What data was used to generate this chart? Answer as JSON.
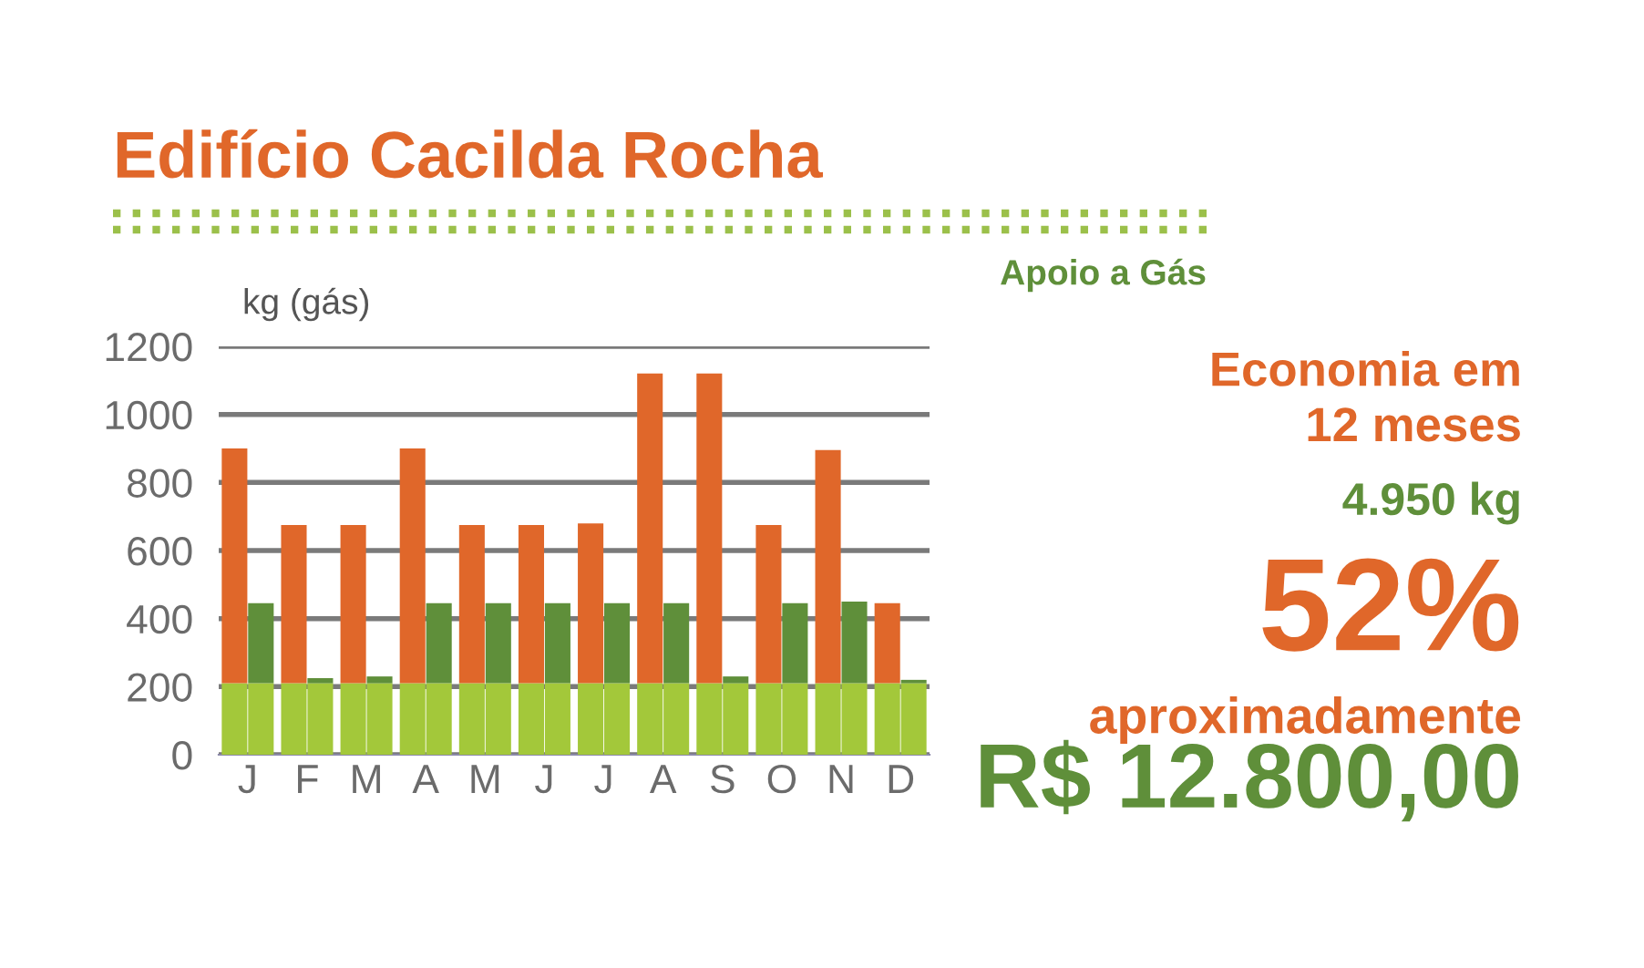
{
  "chart_data": {
    "type": "bar",
    "stacked": true,
    "title": "Edifício Cacilda Rocha",
    "ylabel": "kg (gás)",
    "categories": [
      "J",
      null,
      "F",
      null,
      "M",
      null,
      "A",
      null,
      "M",
      null,
      "J",
      null,
      "J",
      null,
      "A",
      null,
      "S",
      null,
      "O",
      null,
      "N",
      null,
      "D",
      null
    ],
    "series": [
      {
        "color": "#a3c83a",
        "values": [
          210,
          210,
          210,
          210,
          210,
          210,
          210,
          210,
          210,
          210,
          210,
          210,
          210,
          210,
          210,
          210,
          210,
          210,
          210,
          210,
          210,
          210,
          210,
          210
        ]
      },
      {
        "color": "#e0672a",
        "values": [
          690,
          null,
          465,
          null,
          465,
          null,
          690,
          null,
          465,
          null,
          465,
          null,
          470,
          null,
          910,
          null,
          910,
          null,
          465,
          null,
          685,
          null,
          235,
          null
        ]
      },
      {
        "color": "#5f8f3a",
        "values": [
          null,
          235,
          null,
          15,
          null,
          20,
          null,
          235,
          null,
          235,
          null,
          235,
          null,
          235,
          null,
          235,
          null,
          20,
          null,
          235,
          null,
          240,
          null,
          10
        ]
      }
    ],
    "ylim": [
      0,
      1200
    ],
    "yticks": [
      0,
      200,
      400,
      600,
      800,
      1000,
      1200
    ],
    "grid": "y",
    "legend": false,
    "annotations": [
      "Apoio a Gás",
      "Economia em\n12 meses",
      "4.950 kg",
      "52%",
      "aproximadamente",
      "R$ 12.800,00"
    ]
  }
}
